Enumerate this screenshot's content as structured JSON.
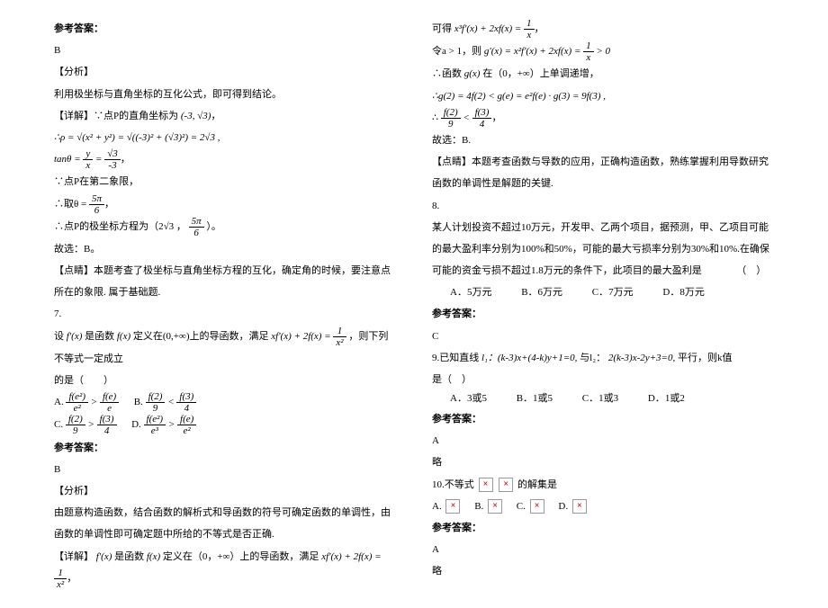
{
  "left": {
    "ans_label": "参考答案：",
    "ans_b": "B",
    "analysis_label": "【分析】",
    "analysis_text": "利用极坐标与直角坐标的互化公式，即可得到结论。",
    "detail_label": "【详解】∵点P的直角坐标为",
    "coord": "(-3, √3)",
    "rho_line": "∴ρ = √(x² + y²) = √((-3)² + (√3)²) = 2√3 ,",
    "tan_line_prefix": "tanθ = ",
    "tan_frac_num": "y",
    "tan_frac_den": "x",
    "tan_eq": " = ",
    "tan_frac2_num": "√3",
    "tan_frac2_den": "-3",
    "point_quadrant": "∵点P在第二象限，",
    "theta_prefix": "∴取θ = ",
    "theta_num": "5π",
    "theta_den": "6",
    "polar_prefix": "∴点P的极坐标方程为（2√3 ，",
    "polar_suffix": "）。",
    "choose_b": "故选：B。",
    "summary_label": "【点睛】本题考查了极坐标与直角坐标方程的互化，确定角的时候，要注意点所在的象限. 属于基础题.",
    "q7": "7.",
    "q7_text_1": "设",
    "q7_fx": "f'(x)",
    "q7_text_2": "是函数",
    "q7_fx2": "f(x)",
    "q7_text_3": "定义在(0,+∞)上的导函数，满足",
    "q7_eq": "xf'(x) + 2f(x) = ",
    "q7_frac_num": "1",
    "q7_frac_den": "x²",
    "q7_text_4": "，则下列不等式一定成立",
    "q7_text_5": "的是（　　）",
    "q7_optA": "A. ",
    "q7_optB": "B. ",
    "q7_optC": "C. ",
    "q7_optD": "D. ",
    "fe2": "f(e²)",
    "fe": "f(e)",
    "f2": "f(2)",
    "f3": "f(3)",
    "e2": "e²",
    "e": "e",
    "n9": "9",
    "n4": "4",
    "e3": "e³",
    "lt": " < ",
    "gt": " > ",
    "ans_label2": "参考答案：",
    "ans_b2": "B",
    "analysis_label2": "【分析】",
    "analysis_text2": "由题意构造函数，结合函数的解析式和导函数的符号可确定函数的单调性，由函数的单调性即可确定题中所给的不等式是否正确.",
    "detail2_prefix": "【详解】",
    "detail2_f": "f'(x)",
    "detail2_mid": "是函数",
    "detail2_f2": "f(x)",
    "detail2_text": "定义在（0，+∞）上的导函数，满足",
    "detail2_eq": "xf'(x) + 2f(x) = ",
    "detail2_num": "1",
    "detail2_den": "x²"
  },
  "right": {
    "line1_prefix": "可得",
    "line1_eq": "x³f'(x) + 2xf(x) = ",
    "line1_num": "1",
    "line1_den": "x",
    "line2_prefix": "令a > 1，则",
    "line2_eq": "g'(x) = x²f'(x) + 2xf(x) = ",
    "line2_num": "1",
    "line2_den": "x",
    "line2_suffix": " > 0",
    "line3_prefix": "∴函数",
    "line3_g": "g(x)",
    "line3_suffix": "在（0，+∞）上单调递增，",
    "line4": "∴g(2) = 4f(2) < g(e) = e²f(e) · g(3) = 9f(3) ,",
    "line5_prefix": "∴ ",
    "line5_num1": "f(2)",
    "line5_den1": "9",
    "line5_lt": " < ",
    "line5_num2": "f(3)",
    "line5_den2": "4",
    "choose_b2": "故选：B.",
    "summary2": "【点睛】本题考查函数与导数的应用，正确构造函数，熟练掌握利用导数研究函数的单调性是解题的关键.",
    "q8": "8.",
    "q8_text1": "某人计划投资不超过10万元，开发甲、乙两个项目，据预测，甲、乙项目可能的最大盈利率分别为100%和50%，可能的最大亏损率分别为30%和10%.在确保可能的资金亏损不超过1.8万元的条件下，此项目的最大盈利是　　　　（　）",
    "q8_A": "A．5万元",
    "q8_B": "B．6万元",
    "q8_C": "C．7万元",
    "q8_D": "D．8万元",
    "ans_label3": "参考答案：",
    "ans_c": "C",
    "q9_prefix": "9.已知直线",
    "q9_l1": "l₁：(k-3)x+(4-k)y+1=0,",
    "q9_mid": "与l₂：",
    "q9_l2": "2(k-3)x-2y+3=0,",
    "q9_suffix": "平行，则k值",
    "q9_text2": "是（　）",
    "q9_A": "A．3或5",
    "q9_B": "B．1或5",
    "q9_C": "C．1或3",
    "q9_D": "D．1或2",
    "ans_label4": "参考答案：",
    "ans_a": "A",
    "omit": "略",
    "q10_prefix": "10.不等式",
    "q10_suffix": "的解集是",
    "q10_A": "A. ",
    "q10_B": "B. ",
    "q10_C": "C. ",
    "q10_D": "D. ",
    "ans_label5": "参考答案：",
    "ans_a2": "A",
    "omit2": "略"
  }
}
